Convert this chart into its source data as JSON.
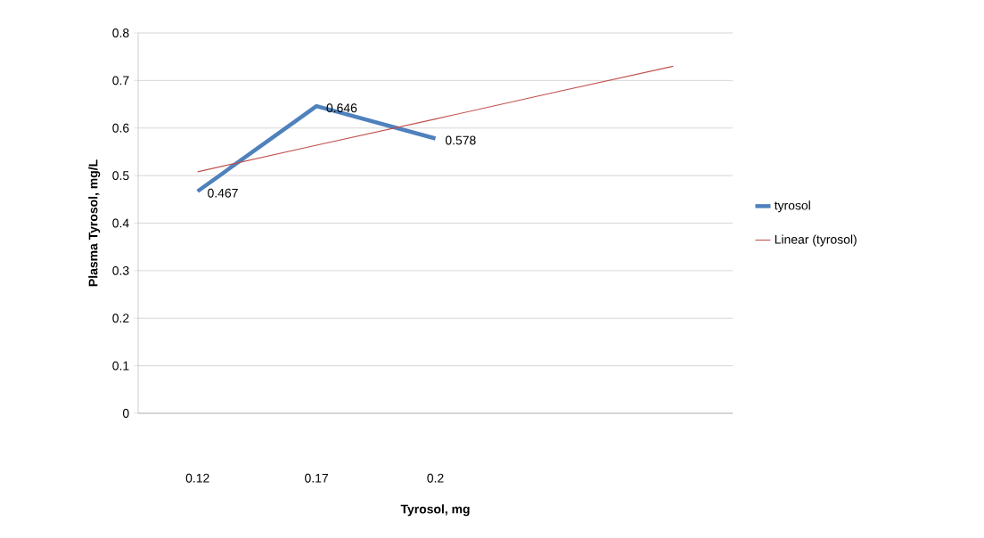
{
  "chart_data": {
    "type": "line",
    "xlabel": "Tyrosol, mg",
    "ylabel": "Plasma Tyrosol, mg/L",
    "categories": [
      "0.12",
      "0.17",
      "0.2",
      null,
      null
    ],
    "series": [
      {
        "name": "tyrosol",
        "color": "#4f81bd",
        "values": [
          0.467,
          0.646,
          0.578,
          null,
          null
        ],
        "value_labels": [
          "0.467",
          "0.646",
          "0.578",
          null,
          null
        ]
      },
      {
        "name": "Linear (tyrosol)",
        "color": "#c0504d",
        "values": [
          0.508,
          0.564,
          0.619,
          0.675,
          0.73
        ]
      }
    ],
    "ylim": [
      0,
      0.8
    ],
    "yticks": [
      0,
      0.1,
      0.2,
      0.3,
      0.4,
      0.5,
      0.6,
      0.7,
      0.8
    ],
    "grid": "y",
    "legend": "right",
    "marker": "none",
    "line_style": "solid"
  }
}
